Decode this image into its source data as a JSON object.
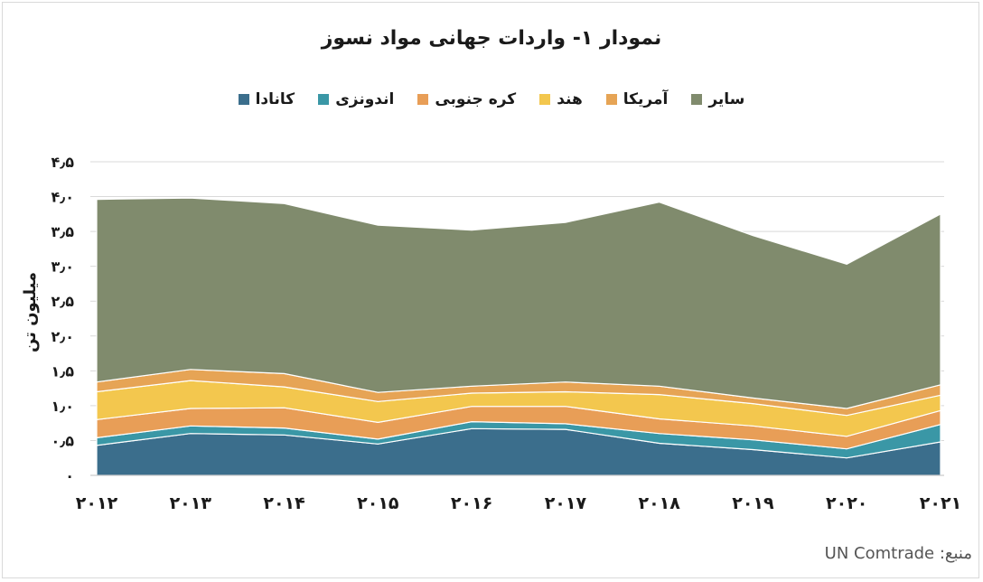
{
  "chart_data": {
    "type": "area",
    "stacked": true,
    "title": "نمودار ۱- واردات جهانی مواد نسوز",
    "ylabel": "میلیون تن",
    "source": "منبع: UN Comtrade",
    "x": [
      "۲۰۱۲",
      "۲۰۱۳",
      "۲۰۱۴",
      "۲۰۱۵",
      "۲۰۱۶",
      "۲۰۱۷",
      "۲۰۱۸",
      "۲۰۱۹",
      "۲۰۲۰",
      "۲۰۲۱"
    ],
    "y_ticks": [
      {
        "value": 0,
        "label": "۰"
      },
      {
        "value": 0.5,
        "label": "۰٫۵"
      },
      {
        "value": 1.0,
        "label": "۱٫۰"
      },
      {
        "value": 1.5,
        "label": "۱٫۵"
      },
      {
        "value": 2.0,
        "label": "۲٫۰"
      },
      {
        "value": 2.5,
        "label": "۲٫۵"
      },
      {
        "value": 3.0,
        "label": "۳٫۰"
      },
      {
        "value": 3.5,
        "label": "۳٫۵"
      },
      {
        "value": 4.0,
        "label": "۴٫۰"
      },
      {
        "value": 4.5,
        "label": "۴٫۵"
      }
    ],
    "ylim": [
      0,
      4.5
    ],
    "grid": true,
    "legend_position": "top",
    "series": [
      {
        "name": "کانادا",
        "color": "#3b6e8c",
        "values": [
          0.43,
          0.6,
          0.58,
          0.45,
          0.67,
          0.66,
          0.46,
          0.37,
          0.25,
          0.48
        ]
      },
      {
        "name": "اندونزی",
        "color": "#3a97a6",
        "values": [
          0.11,
          0.11,
          0.1,
          0.07,
          0.1,
          0.08,
          0.14,
          0.14,
          0.13,
          0.25
        ]
      },
      {
        "name": "کره جنوبی",
        "color": "#e89e57",
        "values": [
          0.26,
          0.25,
          0.29,
          0.24,
          0.22,
          0.25,
          0.21,
          0.2,
          0.18,
          0.2
        ]
      },
      {
        "name": "هند",
        "color": "#f3c74e",
        "values": [
          0.4,
          0.4,
          0.3,
          0.3,
          0.19,
          0.21,
          0.35,
          0.32,
          0.3,
          0.22
        ]
      },
      {
        "name": "آمریکا",
        "color": "#e6a455",
        "values": [
          0.14,
          0.16,
          0.19,
          0.13,
          0.1,
          0.14,
          0.12,
          0.08,
          0.1,
          0.15
        ]
      },
      {
        "name": "سایر",
        "color": "#808b6d",
        "values": [
          2.62,
          2.46,
          2.44,
          2.4,
          2.24,
          2.29,
          2.64,
          2.33,
          2.07,
          2.45
        ]
      }
    ]
  }
}
